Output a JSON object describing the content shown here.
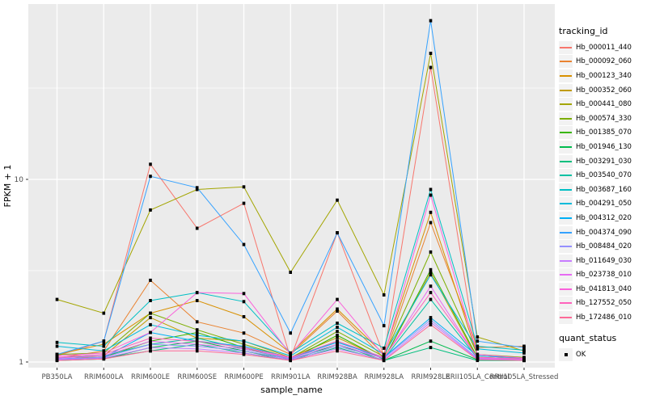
{
  "figure": {
    "x_axis": {
      "title": "sample_name"
    },
    "y_axis": {
      "title": "FPKM + 1",
      "tick_labels": [
        "1",
        "10"
      ]
    },
    "legend": {
      "tracking_title": "tracking_id",
      "quant_title": "quant_status",
      "quant_ok_label": "OK"
    },
    "panel_bg_color": "#EBEBEB",
    "gridline_color": "#FFFFFF",
    "tick_label_color": "#4D4D4D",
    "point_color": "#000000"
  },
  "chart_data": {
    "type": "line",
    "title": "",
    "xlabel": "sample_name",
    "ylabel": "FPKM + 1",
    "y_scale": "log10",
    "ylim": [
      1,
      90
    ],
    "y_major_ticks": [
      1,
      10
    ],
    "y_minor_gridlines": [
      3.162,
      31.62
    ],
    "grid": true,
    "legend_position": "right",
    "point_marker": {
      "shape": "square",
      "color": "#000000",
      "legend_label": "OK"
    },
    "categories": [
      "PB350LA",
      "RRIM600LA",
      "RRIM600LE",
      "RRIM600SE",
      "RRIM600PE",
      "RRIM901LA",
      "RRIM928BA",
      "RRIM928LA",
      "RRIM928LE",
      "RRII105LA_Control",
      "RRII105LA_Stressed"
    ],
    "series": [
      {
        "name": "Hb_000011_440",
        "color": "#F8766D",
        "values": [
          1.08,
          1.3,
          12.1,
          5.4,
          7.4,
          1.05,
          5.1,
          1.08,
          41,
          1.05,
          1.02
        ]
      },
      {
        "name": "Hb_000092_060",
        "color": "#EA8331",
        "values": [
          1.05,
          1.15,
          2.8,
          1.66,
          1.44,
          1.1,
          1.9,
          1.05,
          5.8,
          1.2,
          1.22
        ]
      },
      {
        "name": "Hb_000123_340",
        "color": "#D89000",
        "values": [
          1.1,
          1.25,
          1.85,
          2.17,
          1.77,
          1.12,
          1.95,
          1.1,
          6.6,
          1.08,
          1.05
        ]
      },
      {
        "name": "Hb_000352_060",
        "color": "#C09B00",
        "values": [
          1.03,
          1.08,
          1.75,
          1.35,
          1.3,
          1.06,
          1.36,
          1.04,
          3.1,
          1.04,
          1.03
        ]
      },
      {
        "name": "Hb_000441_080",
        "color": "#A3A500",
        "values": [
          2.2,
          1.85,
          6.8,
          8.8,
          9.1,
          3.1,
          7.7,
          2.33,
          49,
          1.37,
          1.15
        ]
      },
      {
        "name": "Hb_000574_330",
        "color": "#7CAE00",
        "values": [
          1.1,
          1.12,
          1.85,
          1.5,
          1.25,
          1.05,
          1.47,
          1.07,
          4.0,
          1.1,
          1.06
        ]
      },
      {
        "name": "Hb_001385_070",
        "color": "#39B600",
        "values": [
          1.04,
          1.06,
          1.3,
          1.45,
          1.2,
          1.03,
          1.4,
          1.03,
          3.2,
          1.06,
          1.04
        ]
      },
      {
        "name": "Hb_001946_130",
        "color": "#00BB4E",
        "values": [
          1.02,
          1.04,
          1.2,
          1.3,
          1.15,
          1.02,
          1.25,
          1.02,
          1.3,
          1.03,
          1.02
        ]
      },
      {
        "name": "Hb_003291_030",
        "color": "#00BF7D",
        "values": [
          1.03,
          1.05,
          1.15,
          1.25,
          1.12,
          1.02,
          1.2,
          1.02,
          1.2,
          1.02,
          1.02
        ]
      },
      {
        "name": "Hb_003540_070",
        "color": "#00C1A3",
        "values": [
          1.06,
          1.08,
          1.25,
          1.35,
          1.18,
          1.04,
          1.3,
          1.04,
          2.2,
          1.05,
          1.03
        ]
      },
      {
        "name": "Hb_003687_160",
        "color": "#00BFC4",
        "values": [
          1.28,
          1.22,
          2.17,
          2.4,
          2.14,
          1.12,
          1.63,
          1.19,
          8.8,
          1.22,
          1.16
        ]
      },
      {
        "name": "Hb_004291_050",
        "color": "#00BBDA",
        "values": [
          1.22,
          1.15,
          1.6,
          1.4,
          1.3,
          1.08,
          1.55,
          1.1,
          3.0,
          1.18,
          1.12
        ]
      },
      {
        "name": "Hb_004312_020",
        "color": "#00B0F6",
        "values": [
          1.04,
          1.06,
          1.45,
          1.3,
          1.22,
          1.06,
          1.28,
          1.06,
          1.75,
          1.08,
          1.05
        ]
      },
      {
        "name": "Hb_004374_090",
        "color": "#35A2FF",
        "values": [
          1.1,
          1.3,
          10.4,
          9.0,
          4.4,
          1.44,
          5.1,
          1.58,
          74,
          1.3,
          1.2
        ]
      },
      {
        "name": "Hb_008484_020",
        "color": "#9590FF",
        "values": [
          1.04,
          1.06,
          1.25,
          1.22,
          1.15,
          1.04,
          1.22,
          1.05,
          1.7,
          1.05,
          1.04
        ]
      },
      {
        "name": "Hb_011649_030",
        "color": "#C77CFF",
        "values": [
          1.03,
          1.05,
          1.2,
          1.18,
          1.12,
          1.03,
          1.18,
          1.03,
          1.65,
          1.04,
          1.03
        ]
      },
      {
        "name": "Hb_023738_010",
        "color": "#E76BF3",
        "values": [
          1.05,
          1.08,
          1.3,
          1.25,
          1.18,
          1.05,
          1.25,
          1.05,
          2.6,
          1.05,
          1.04
        ]
      },
      {
        "name": "Hb_041813_040",
        "color": "#FA62DB",
        "values": [
          1.08,
          1.12,
          1.45,
          2.4,
          2.37,
          1.1,
          2.2,
          1.08,
          8.2,
          1.1,
          1.05
        ]
      },
      {
        "name": "Hb_127552_050",
        "color": "#FF62BC",
        "values": [
          1.06,
          1.1,
          1.35,
          1.3,
          1.2,
          1.06,
          1.3,
          1.06,
          2.4,
          1.06,
          1.04
        ]
      },
      {
        "name": "Hb_172486_010",
        "color": "#FF6A98",
        "values": [
          1.02,
          1.04,
          1.15,
          1.15,
          1.1,
          1.02,
          1.15,
          1.02,
          1.6,
          1.03,
          1.02
        ]
      }
    ]
  }
}
